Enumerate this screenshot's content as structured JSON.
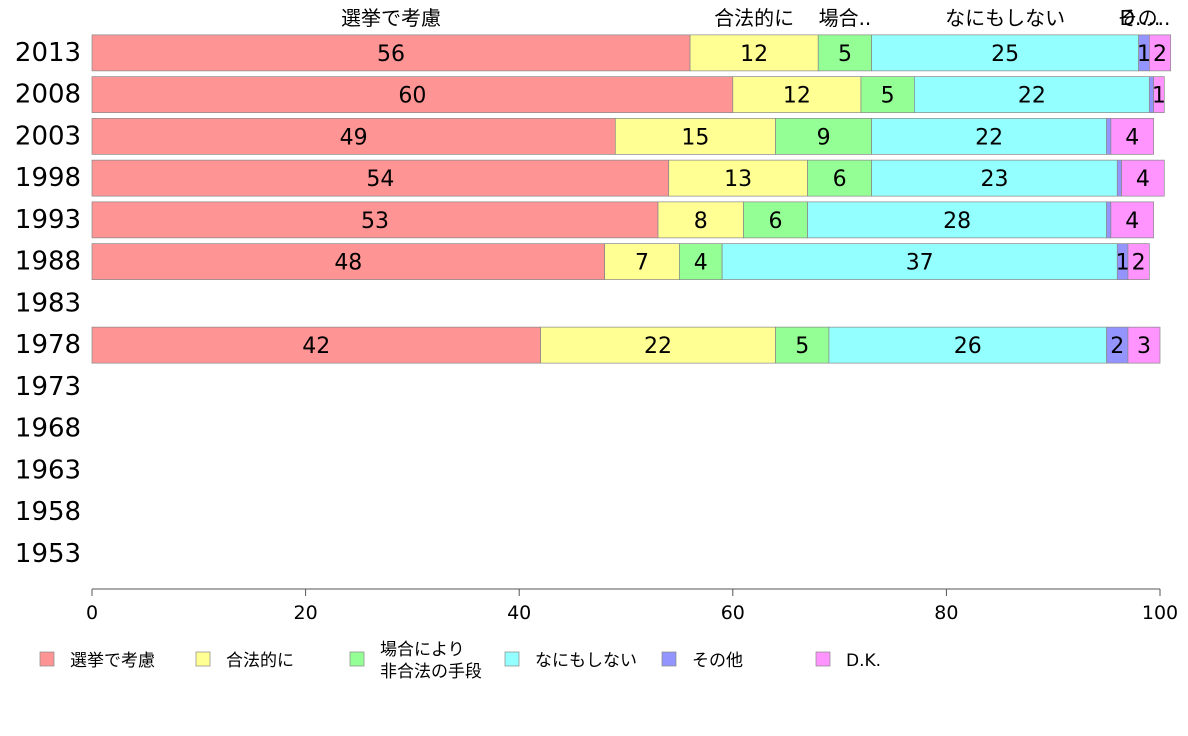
{
  "chart_data": {
    "type": "bar",
    "orientation": "horizontal",
    "stacked": true,
    "categories": [
      "2013",
      "2008",
      "2003",
      "1998",
      "1993",
      "1988",
      "1983",
      "1978",
      "1973",
      "1968",
      "1963",
      "1958",
      "1953"
    ],
    "series": [
      {
        "name": "選挙で考慮",
        "header": "選挙で考慮",
        "color": "#ff9494",
        "values": [
          56,
          60,
          49,
          54,
          53,
          48,
          null,
          42,
          null,
          null,
          null,
          null,
          null
        ]
      },
      {
        "name": "合法的に",
        "header": "合法的に",
        "color": "#ffff94",
        "values": [
          12,
          12,
          15,
          13,
          8,
          7,
          null,
          22,
          null,
          null,
          null,
          null,
          null
        ]
      },
      {
        "name": "場合により\n非合法の手段",
        "header": "場合..",
        "color": "#94ff94",
        "values": [
          5,
          5,
          9,
          6,
          6,
          4,
          null,
          5,
          null,
          null,
          null,
          null,
          null
        ]
      },
      {
        "name": "なにもしない",
        "header": "なにもしない",
        "color": "#94ffff",
        "values": [
          25,
          22,
          22,
          23,
          28,
          37,
          null,
          26,
          null,
          null,
          null,
          null,
          null
        ]
      },
      {
        "name": "その他",
        "header": "その..",
        "color": "#9494ff",
        "values": [
          1,
          0.4,
          0.4,
          0.4,
          0.4,
          1,
          null,
          2,
          null,
          null,
          null,
          null,
          null
        ]
      },
      {
        "name": "D.K.",
        "header": "D....",
        "color": "#ff94ff",
        "values": [
          2,
          1,
          4,
          4,
          4,
          2,
          null,
          3,
          null,
          null,
          null,
          null,
          null
        ]
      }
    ],
    "xlim": [
      0,
      100
    ],
    "xticks": [
      0,
      20,
      40,
      60,
      80,
      100
    ],
    "legend_position": "bottom"
  }
}
